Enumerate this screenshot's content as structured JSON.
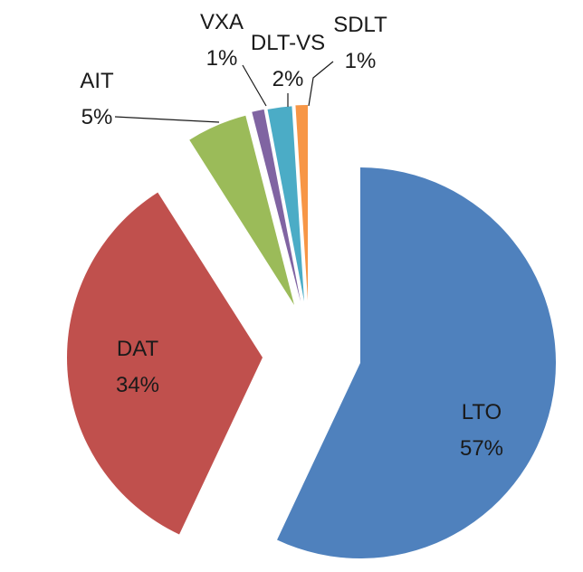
{
  "chart_data": {
    "type": "pie",
    "title": "",
    "legend": "none",
    "label_format": "category and percent",
    "start": "12 o'clock, clockwise",
    "exploded": true,
    "slices": [
      {
        "label": "LTO",
        "value": 57,
        "display": "57%",
        "color": "#4f81bd"
      },
      {
        "label": "DAT",
        "value": 34,
        "display": "34%",
        "color": "#c0504d"
      },
      {
        "label": "AIT",
        "value": 5,
        "display": "5%",
        "color": "#9bbb59"
      },
      {
        "label": "VXA",
        "value": 1,
        "display": "1%",
        "color": "#8064a2"
      },
      {
        "label": "DLT-VS",
        "value": 2,
        "display": "2%",
        "color": "#4bacc6"
      },
      {
        "label": "SDLT",
        "value": 1,
        "display": "1%",
        "color": "#f79646"
      }
    ]
  }
}
